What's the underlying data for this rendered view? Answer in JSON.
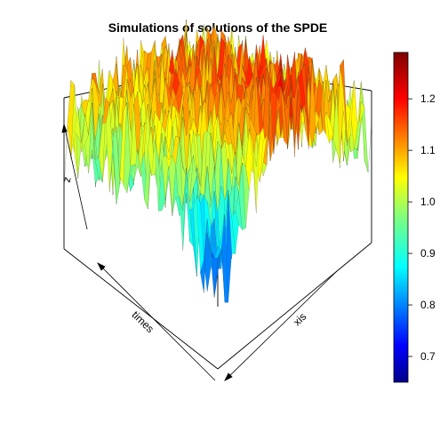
{
  "chart_data": {
    "type": "surface3d",
    "title": "Simulations of solutions of the SPDE",
    "xlabel": "times",
    "ylabel": "xis",
    "zlabel": "z",
    "zlim": [
      0.65,
      1.29
    ],
    "colorbar": {
      "palette": "jet",
      "range": [
        0.65,
        1.29
      ],
      "ticks": [
        0.7,
        0.8,
        0.9,
        1.0,
        1.1,
        1.2
      ],
      "tick_labels": [
        "0.7",
        "0.8",
        "0.9",
        "1.0",
        "1.1",
        "1.2"
      ]
    },
    "box": "on",
    "axis_ticks": "off"
  }
}
